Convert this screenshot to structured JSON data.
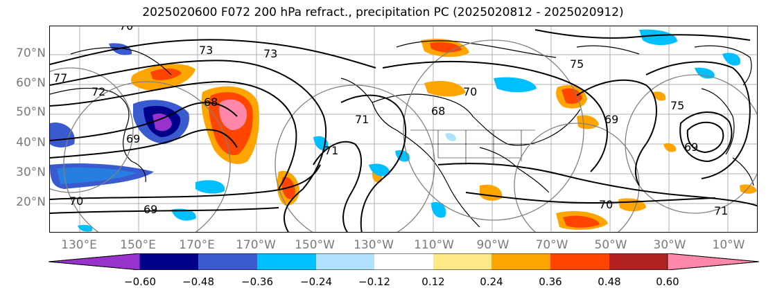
{
  "title": "2025020600 F072 200 hPa refract., precipitation PC (2025020812 - 2025020912)",
  "lat_labels": [
    "70°N",
    "60°N",
    "50°N",
    "40°N",
    "30°N",
    "20°N"
  ],
  "lon_labels": [
    "130°E",
    "150°E",
    "170°E",
    "170°W",
    "150°W",
    "130°W",
    "110°W",
    "90°W",
    "70°W",
    "50°W",
    "30°W",
    "10°W"
  ],
  "contour_labels": [
    "70",
    "73",
    "73",
    "77",
    "72",
    "68",
    "69",
    "71",
    "71",
    "69",
    "70",
    "68",
    "69",
    "75",
    "69",
    "70",
    "71",
    "70",
    "75"
  ],
  "colorbar": {
    "ticks": [
      "−0.60",
      "−0.48",
      "−0.36",
      "−0.24",
      "−0.12",
      "0.12",
      "0.24",
      "0.36",
      "0.48",
      "0.60"
    ],
    "colors": [
      "#9932cc",
      "#00008b",
      "#3a5bcf",
      "#00bfff",
      "#b0e2ff",
      "#ffffff",
      "#ffe885",
      "#ffa500",
      "#ff4500",
      "#b22222",
      "#ff88aa"
    ]
  },
  "colors": {
    "land_outline": "#000000",
    "grid": "#b0b0b0",
    "contour": "#000000",
    "circle_contour": "#808080"
  }
}
